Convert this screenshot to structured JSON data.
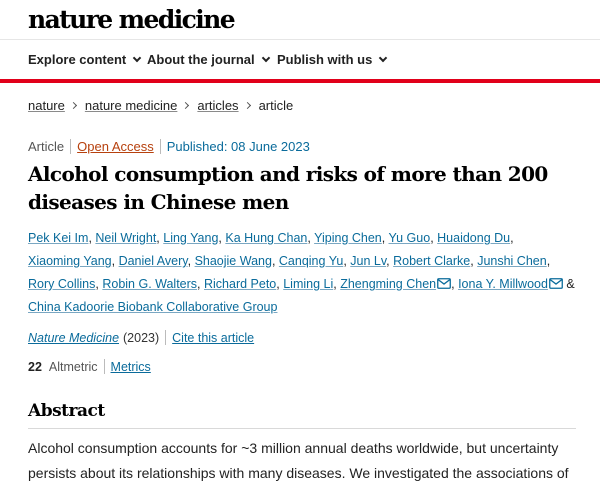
{
  "site": {
    "logo": "nature medicine"
  },
  "nav": [
    {
      "label": "Explore content"
    },
    {
      "label": "About the journal"
    },
    {
      "label": "Publish with us"
    }
  ],
  "breadcrumb": {
    "items": [
      "nature",
      "nature medicine",
      "articles"
    ],
    "current": "article"
  },
  "meta": {
    "type": "Article",
    "access": "Open Access",
    "published": "Published: 08 June 2023"
  },
  "title": "Alcohol consumption and risks of more than 200 diseases in Chinese men",
  "authors": [
    {
      "name": "Pek Kei Im"
    },
    {
      "name": "Neil Wright"
    },
    {
      "name": "Ling Yang"
    },
    {
      "name": "Ka Hung Chan"
    },
    {
      "name": "Yiping Chen"
    },
    {
      "name": "Yu Guo"
    },
    {
      "name": "Huaidong Du"
    },
    {
      "name": "Xiaoming Yang"
    },
    {
      "name": "Daniel Avery"
    },
    {
      "name": "Shaojie Wang"
    },
    {
      "name": "Canqing Yu"
    },
    {
      "name": "Jun Lv"
    },
    {
      "name": "Robert Clarke"
    },
    {
      "name": "Junshi Chen"
    },
    {
      "name": "Rory Collins"
    },
    {
      "name": "Robin G. Walters"
    },
    {
      "name": "Richard Peto"
    },
    {
      "name": "Liming Li"
    },
    {
      "name": "Zhengming Chen"
    },
    {
      "name": "Iona Y. Millwood"
    }
  ],
  "authors_and": "&",
  "authors_group": "China Kadoorie Biobank Collaborative Group",
  "citation": {
    "journal": "Nature Medicine",
    "year": "(2023)",
    "cite_label": "Cite this article"
  },
  "metrics": {
    "altmetric_score": "22",
    "altmetric_label": "Altmetric",
    "metrics_label": "Metrics"
  },
  "abstract": {
    "heading": "Abstract",
    "text": "Alcohol consumption accounts for ~3 million annual deaths worldwide, but uncertainty persists about its relationships with many diseases. We investigated the associations of"
  },
  "colors": {
    "accent_red": "#e1001a",
    "link_blue": "#0a6b9b",
    "open_access": "#b7410e"
  }
}
